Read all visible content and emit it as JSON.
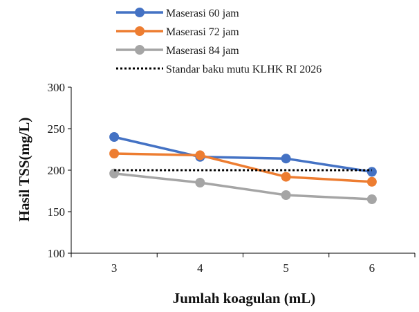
{
  "chart_data": {
    "type": "line",
    "title": "",
    "xlabel": "Jumlah koagulan (mL)",
    "ylabel": "Hasil TSS(mg/L)",
    "categories": [
      "3",
      "4",
      "5",
      "6"
    ],
    "x": [
      3,
      4,
      5,
      6
    ],
    "ylim": [
      100,
      300
    ],
    "yticks": [
      "100",
      "150",
      "200",
      "250",
      "300"
    ],
    "grid": false,
    "legend_position": "top",
    "series": [
      {
        "name": "Maserasi 60 jam",
        "color": "#4472C4",
        "style": "solid-marker",
        "values": [
          240,
          216,
          214,
          198
        ]
      },
      {
        "name": "Maserasi 72 jam",
        "color": "#ED7D31",
        "style": "solid-marker",
        "values": [
          220,
          218,
          192,
          186
        ]
      },
      {
        "name": "Maserasi 84 jam",
        "color": "#A5A5A5",
        "style": "solid-marker",
        "values": [
          196,
          185,
          170,
          165
        ]
      },
      {
        "name": "Standar baku mutu KLHK RI 2026",
        "color": "#000000",
        "style": "dotted",
        "values": [
          200,
          200,
          200,
          200
        ]
      }
    ]
  }
}
